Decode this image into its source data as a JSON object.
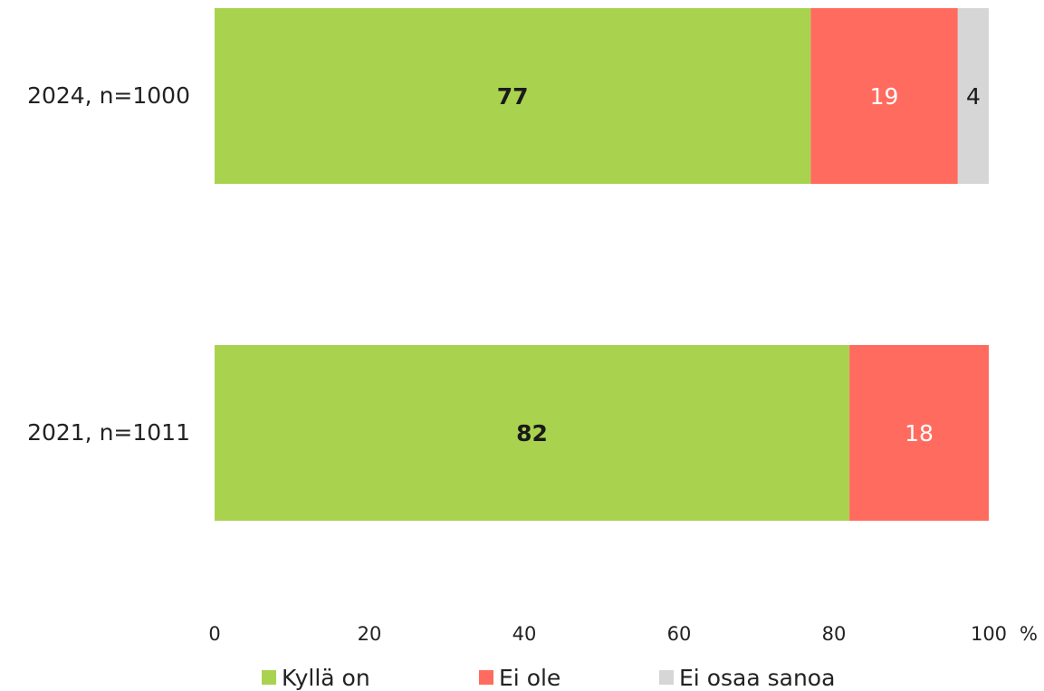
{
  "chart_data": {
    "type": "bar",
    "orientation": "horizontal",
    "stacked": true,
    "categories": [
      "2024, n=1000",
      "2021, n=1011"
    ],
    "series": [
      {
        "name": "Kyllä on",
        "values": [
          77,
          82
        ],
        "color": "#a9d34f",
        "label_color": "#1a1a1a",
        "label_bold": true
      },
      {
        "name": "Ei ole",
        "values": [
          19,
          18
        ],
        "color": "#ff6b5e",
        "label_color": "#ffffff",
        "label_bold": false
      },
      {
        "name": "Ei osaa sanoa",
        "values": [
          4,
          0
        ],
        "color": "#d6d6d6",
        "label_color": "#1a1a1a",
        "label_bold": false
      }
    ],
    "xlim": [
      0,
      100
    ],
    "x_ticks": [
      "0",
      "20",
      "40",
      "60",
      "80",
      "100"
    ],
    "x_unit": "%",
    "grid": false,
    "legend_position": "bottom"
  }
}
